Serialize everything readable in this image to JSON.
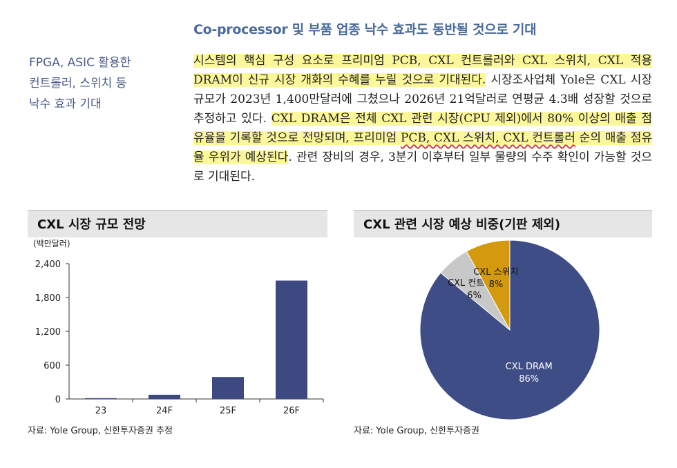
{
  "heading": "Co-processor 및 부품 업종 낙수 효과도 동반될 것으로 기대",
  "sidebar": {
    "line1": "FPGA, ASIC 활용한",
    "line2": "컨트롤러, 스위치 등",
    "line3": "낙수 효과 기대"
  },
  "body": {
    "p1_hl": "시스템의 핵심 구성 요소로 프리미엄 PCB, CXL 컨트롤러와 CXL 스위치, CXL 적용 DRAM이 신규 시장 개화의 수혜를 누릴 것으로 기대된다.",
    "p2": " 시장조사업체 Yole은 CXL 시장 규모가 2023년 1,400만달러에 그쳤으나 2026년 21억달러로 연평균 4.3배 성장할 것으로 추정하고 있다. ",
    "p3_hl_a": "CXL DRAM은 전체 CXL 관련 시장(CPU 제외)에서 80% 이상의 매출 점유율을 기록할 것으로 전망되며, 프리미엄 ",
    "p3_ul": "PCB, CXL 스위치, CXL 컨트롤러",
    "p3_hl_b": " 순의 매출 점유율 우위가 예상된다",
    "p4": ". 관련 장비의 경우, 3분기 이후부터 일부 물량의 수주 확인이 가능할 것으로 기대된다."
  },
  "left_panel": {
    "title": "CXL 시장 규모 전망",
    "unit": "(백만달러)",
    "source": "자료: Yole Group, 신한투자증권 추정"
  },
  "right_panel": {
    "title": "CXL 관련 시장 예상 비중(기판 제외)",
    "source": "자료: Yole Group, 신한투자증권"
  },
  "chart_data": [
    {
      "type": "bar",
      "title": "CXL 시장 규모 전망",
      "ylabel": "(백만달러)",
      "categories": [
        "23",
        "24F",
        "25F",
        "26F"
      ],
      "values": [
        14,
        75,
        390,
        2100
      ],
      "ylim": [
        0,
        2400
      ],
      "yticks": [
        0,
        600,
        1200,
        1800,
        2400
      ],
      "ytick_labels": [
        "0",
        "600",
        "1,200",
        "1,800",
        "2,400"
      ],
      "color": "#3d4a82",
      "grid": false
    },
    {
      "type": "pie",
      "title": "CXL 관련 시장 예상 비중(기판 제외)",
      "slices": [
        {
          "label": "CXL DRAM",
          "value": 86,
          "value_label": "86%",
          "color": "#3f4d86"
        },
        {
          "label": "CXL 컨트롤러",
          "value": 6,
          "value_label": "6%",
          "color": "#c8c8c8"
        },
        {
          "label": "CXL 스위치",
          "value": 8,
          "value_label": "8%",
          "color": "#d49a0f"
        }
      ]
    }
  ]
}
